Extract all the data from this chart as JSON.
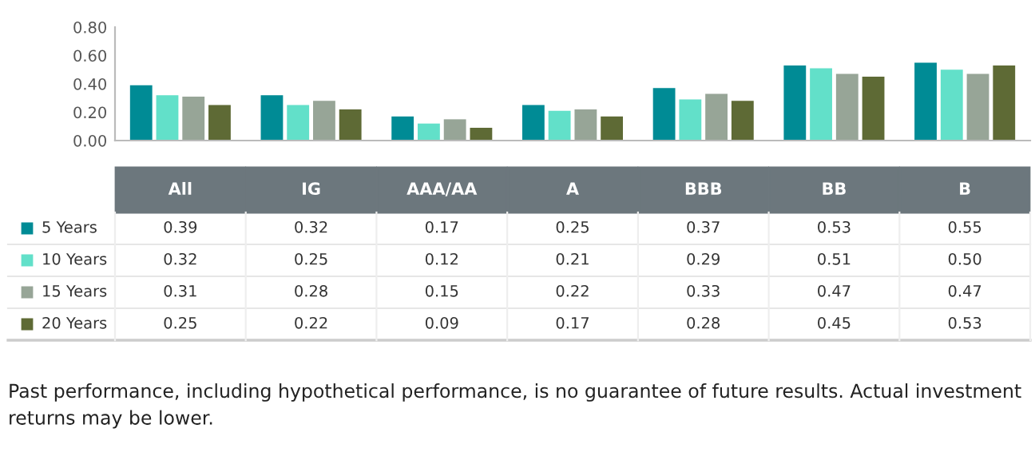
{
  "chart_data": {
    "type": "bar",
    "categories": [
      "All",
      "IG",
      "AAA/AA",
      "A",
      "BBB",
      "BB",
      "B"
    ],
    "series": [
      {
        "name": "5 Years",
        "color": "#008b95",
        "values": [
          0.39,
          0.32,
          0.17,
          0.25,
          0.37,
          0.53,
          0.55
        ],
        "value_labels": [
          "0.39",
          "0.32",
          "0.17",
          "0.25",
          "0.37",
          "0.53",
          "0.55"
        ]
      },
      {
        "name": "10 Years",
        "color": "#62e0c9",
        "values": [
          0.32,
          0.25,
          0.12,
          0.21,
          0.29,
          0.51,
          0.5
        ],
        "value_labels": [
          "0.32",
          "0.25",
          "0.12",
          "0.21",
          "0.29",
          "0.51",
          "0.50"
        ]
      },
      {
        "name": "15 Years",
        "color": "#97a597",
        "values": [
          0.31,
          0.28,
          0.15,
          0.22,
          0.33,
          0.47,
          0.47
        ],
        "value_labels": [
          "0.31",
          "0.28",
          "0.15",
          "0.22",
          "0.33",
          "0.47",
          "0.47"
        ]
      },
      {
        "name": "20 Years",
        "color": "#5e6a35",
        "values": [
          0.25,
          0.22,
          0.09,
          0.17,
          0.28,
          0.45,
          0.53
        ],
        "value_labels": [
          "0.25",
          "0.22",
          "0.09",
          "0.17",
          "0.28",
          "0.45",
          "0.53"
        ]
      }
    ],
    "ylim": [
      0,
      0.8
    ],
    "yticks": [
      {
        "value": 0,
        "label": "0.00"
      },
      {
        "value": 0.2,
        "label": "0.20"
      },
      {
        "value": 0.4,
        "label": "0.40"
      },
      {
        "value": 0.6,
        "label": "0.60"
      },
      {
        "value": 0.8,
        "label": "0.80"
      }
    ],
    "grid": false,
    "legend": "bottom left",
    "annotations": [
      "Past performance, including hypothetical performance, is no guarantee of future results. Actual investment returns may be lower."
    ]
  }
}
